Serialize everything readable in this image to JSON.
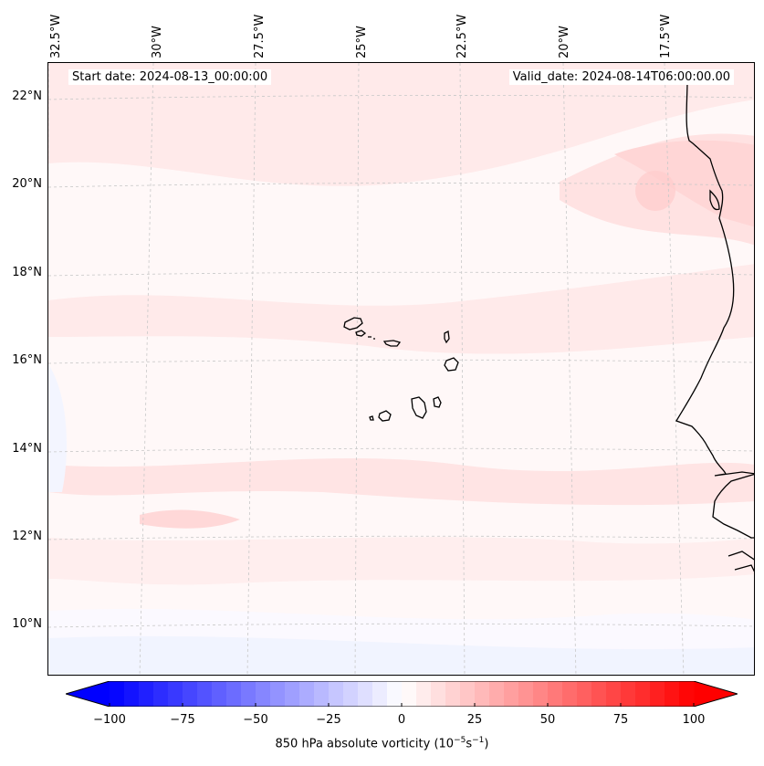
{
  "header": {
    "start_date": "Start date: 2024-08-13_00:00:00",
    "valid_date": "Valid_date: 2024-08-14T06:00:00.00"
  },
  "map": {
    "lon_labels": [
      "32.5°W",
      "30°W",
      "27.5°W",
      "25°W",
      "22.5°W",
      "20°W",
      "17.5°W"
    ],
    "lat_labels": [
      "22°N",
      "20°N",
      "18°N",
      "16°N",
      "14°N",
      "12°N",
      "10°N"
    ],
    "colors": {
      "background": "#fff8f8",
      "light_red": "#ffe4e4",
      "medium_red": "#ffd0d0",
      "light_blue": "#eef2ff",
      "coastline": "#000000",
      "gridline": "#c8c8c8"
    }
  },
  "colorbar": {
    "label_main": "850 hPa absolute vorticity (10",
    "label_exp1": "−5",
    "label_mid": "s",
    "label_exp2": "−1",
    "label_end": ")",
    "ticks": [
      "−100",
      "−75",
      "−50",
      "−25",
      "0",
      "25",
      "50",
      "75",
      "100"
    ],
    "min": -100,
    "max": 100,
    "low_color": "#0000ff",
    "high_color": "#ff0000"
  }
}
